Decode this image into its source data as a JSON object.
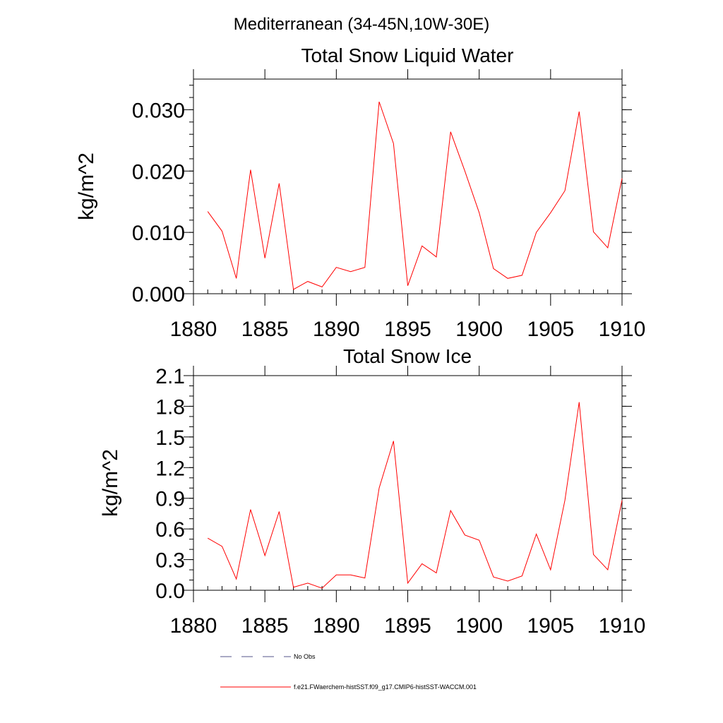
{
  "figure": {
    "title": "Mediterranean (34-45N,10W-30E)",
    "series_color": "#ff0000",
    "obs_color": "#555588"
  },
  "legend": {
    "entries": [
      {
        "label": "No Obs",
        "style": "dashed"
      },
      {
        "label": "f.e21.FWaerchem-histSST.f09_g17.CMIP6-histSST-WACCM.001",
        "style": "solid"
      }
    ]
  },
  "chart_data": [
    {
      "type": "line",
      "title": "Total Snow Liquid Water",
      "xlabel": "",
      "ylabel": "kg/m^2",
      "xlim": [
        1880,
        1910
      ],
      "ylim": [
        0.0,
        0.035
      ],
      "xticks": [
        1880,
        1885,
        1890,
        1895,
        1900,
        1905,
        1910
      ],
      "xtick_labels": [
        "1880",
        "1885",
        "1890",
        "1895",
        "1900",
        "1905",
        "1910"
      ],
      "yticks": [
        0.0,
        0.01,
        0.02,
        0.03
      ],
      "ytick_labels": [
        "0.000",
        "0.010",
        "0.020",
        "0.030"
      ],
      "y_minor_step": 0.002,
      "grid": false,
      "x": [
        1881,
        1882,
        1883,
        1884,
        1885,
        1886,
        1887,
        1888,
        1889,
        1890,
        1891,
        1892,
        1893,
        1894,
        1895,
        1896,
        1897,
        1898,
        1899,
        1900,
        1901,
        1902,
        1903,
        1904,
        1905,
        1906,
        1907,
        1908,
        1909,
        1910
      ],
      "series": [
        {
          "name": "f.e21.FWaerchem-histSST.f09_g17.CMIP6-histSST-WACCM.001",
          "values": [
            0.0134,
            0.0102,
            0.0025,
            0.0202,
            0.0058,
            0.018,
            0.0007,
            0.002,
            0.0011,
            0.0043,
            0.0036,
            0.0043,
            0.0313,
            0.0245,
            0.0013,
            0.0078,
            0.006,
            0.0264,
            0.02,
            0.0132,
            0.0041,
            0.0025,
            0.003,
            0.01,
            0.0132,
            0.0168,
            0.0297,
            0.0101,
            0.0075,
            0.0188
          ]
        }
      ]
    },
    {
      "type": "line",
      "title": "Total Snow Ice",
      "xlabel": "",
      "ylabel": "kg/m^2",
      "xlim": [
        1880,
        1910
      ],
      "ylim": [
        0.0,
        2.1
      ],
      "xticks": [
        1880,
        1885,
        1890,
        1895,
        1900,
        1905,
        1910
      ],
      "xtick_labels": [
        "1880",
        "1885",
        "1890",
        "1895",
        "1900",
        "1905",
        "1910"
      ],
      "yticks": [
        0.0,
        0.3,
        0.6,
        0.9,
        1.2,
        1.5,
        1.8,
        2.1
      ],
      "ytick_labels": [
        "0.0",
        "0.3",
        "0.6",
        "0.9",
        "1.2",
        "1.5",
        "1.8",
        "2.1"
      ],
      "y_minor_step": 0.1,
      "grid": false,
      "x": [
        1881,
        1882,
        1883,
        1884,
        1885,
        1886,
        1887,
        1888,
        1889,
        1890,
        1891,
        1892,
        1893,
        1894,
        1895,
        1896,
        1897,
        1898,
        1899,
        1900,
        1901,
        1902,
        1903,
        1904,
        1905,
        1906,
        1907,
        1908,
        1909,
        1910
      ],
      "series": [
        {
          "name": "f.e21.FWaerchem-histSST.f09_g17.CMIP6-histSST-WACCM.001",
          "values": [
            0.51,
            0.43,
            0.11,
            0.79,
            0.34,
            0.77,
            0.03,
            0.07,
            0.02,
            0.15,
            0.15,
            0.12,
            1.0,
            1.46,
            0.07,
            0.26,
            0.17,
            0.78,
            0.54,
            0.49,
            0.13,
            0.09,
            0.14,
            0.55,
            0.2,
            0.88,
            1.84,
            0.35,
            0.2,
            0.88
          ]
        }
      ]
    }
  ]
}
